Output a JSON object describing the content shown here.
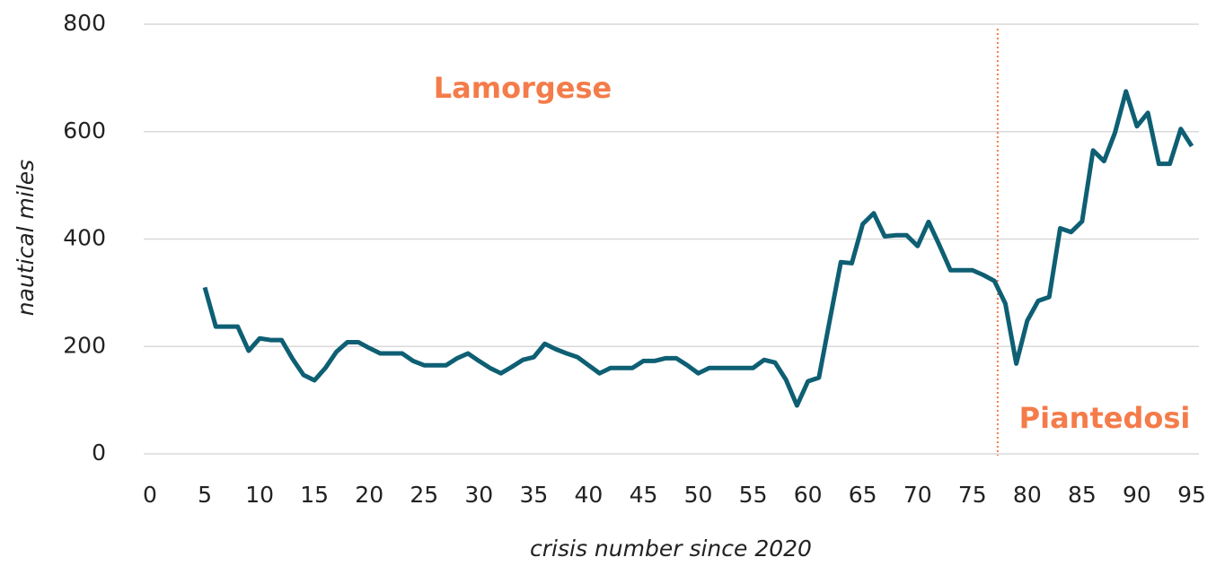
{
  "chart_data": {
    "type": "line",
    "x_label": "crisis number since 2020",
    "y_label": "nautical miles",
    "annotations": [
      "Lamorgese",
      "Piantedosi"
    ],
    "divider_x": 77.3,
    "divider_color": "#f47c4a",
    "x": [
      5,
      6,
      7,
      8,
      9,
      10,
      11,
      12,
      13,
      14,
      15,
      16,
      17,
      18,
      19,
      20,
      21,
      22,
      23,
      24,
      25,
      26,
      27,
      28,
      29,
      30,
      31,
      32,
      33,
      34,
      35,
      36,
      37,
      38,
      39,
      40,
      41,
      42,
      43,
      44,
      45,
      46,
      47,
      48,
      49,
      50,
      51,
      52,
      53,
      54,
      55,
      56,
      57,
      58,
      59,
      60,
      61,
      62,
      63,
      64,
      65,
      66,
      67,
      68,
      69,
      70,
      71,
      72,
      73,
      74,
      75,
      76,
      77,
      78,
      79,
      80,
      81,
      82,
      83,
      84,
      85,
      86,
      87,
      88,
      89,
      90,
      91,
      92,
      93,
      94,
      95
    ],
    "series": [
      {
        "name": "nautical miles",
        "color": "#0e5f73",
        "values": [
          310,
          237,
          237,
          237,
          192,
          215,
          212,
          212,
          177,
          147,
          137,
          160,
          190,
          208,
          208,
          197,
          187,
          187,
          187,
          173,
          165,
          165,
          165,
          178,
          187,
          173,
          160,
          150,
          162,
          175,
          180,
          205,
          195,
          187,
          180,
          165,
          150,
          160,
          160,
          160,
          173,
          173,
          178,
          178,
          165,
          150,
          160,
          160,
          160,
          160,
          160,
          175,
          170,
          138,
          90,
          135,
          142,
          250,
          357,
          355,
          428,
          448,
          405,
          407,
          407,
          387,
          432,
          388,
          342,
          342,
          342,
          333,
          322,
          280,
          168,
          248,
          285,
          292,
          420,
          413,
          433,
          565,
          545,
          598,
          675,
          610,
          635,
          540,
          540,
          605,
          573
        ]
      }
    ],
    "xlim": [
      0,
      95
    ],
    "xticks": [
      0,
      5,
      10,
      15,
      20,
      25,
      30,
      35,
      40,
      45,
      50,
      55,
      60,
      65,
      70,
      75,
      80,
      85,
      90,
      95
    ],
    "ylim": [
      0,
      800
    ],
    "yticks": [
      0,
      200,
      400,
      600,
      800
    ],
    "grid": true
  }
}
